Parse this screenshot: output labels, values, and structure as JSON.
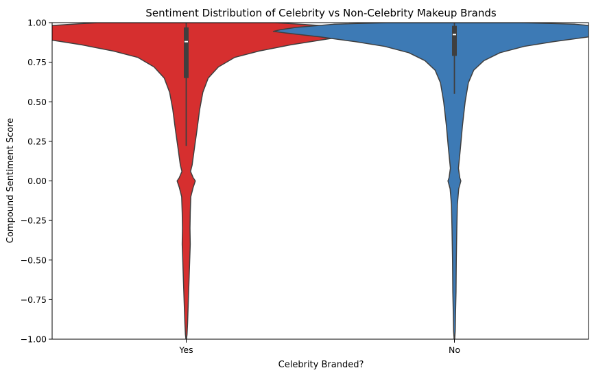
{
  "chart_data": {
    "type": "violin",
    "title": "Sentiment Distribution of Celebrity vs Non-Celebrity Makeup Brands",
    "xlabel": "Celebrity Branded?",
    "ylabel": "Compound Sentiment Score",
    "categories": [
      "Yes",
      "No"
    ],
    "ylim": [
      -1.0,
      1.0
    ],
    "yticks": [
      -1.0,
      -0.75,
      -0.5,
      -0.25,
      0.0,
      0.25,
      0.5,
      0.75,
      1.0
    ],
    "ytick_labels": [
      "−1.00",
      "−0.75",
      "−0.50",
      "−0.25",
      "0.00",
      "0.25",
      "0.50",
      "0.75",
      "1.00"
    ],
    "grid": false,
    "legend": false,
    "series": [
      {
        "category": "Yes",
        "color": "#d62f2f",
        "box": {
          "q1": 0.65,
          "median": 0.88,
          "q3": 0.97,
          "whisker_low": 0.22,
          "whisker_high": 1.0
        },
        "density_profile": [
          {
            "y": 1.0,
            "half_width": 0.33
          },
          {
            "y": 0.98,
            "half_width": 0.52
          },
          {
            "y": 0.96,
            "half_width": 0.59
          },
          {
            "y": 0.945,
            "half_width": 0.635
          },
          {
            "y": 0.93,
            "half_width": 0.64
          },
          {
            "y": 0.9,
            "half_width": 0.54
          },
          {
            "y": 0.86,
            "half_width": 0.39
          },
          {
            "y": 0.82,
            "half_width": 0.27
          },
          {
            "y": 0.78,
            "half_width": 0.18
          },
          {
            "y": 0.72,
            "half_width": 0.12
          },
          {
            "y": 0.65,
            "half_width": 0.082
          },
          {
            "y": 0.56,
            "half_width": 0.062
          },
          {
            "y": 0.45,
            "half_width": 0.05
          },
          {
            "y": 0.32,
            "half_width": 0.04
          },
          {
            "y": 0.2,
            "half_width": 0.03
          },
          {
            "y": 0.1,
            "half_width": 0.022
          },
          {
            "y": 0.06,
            "half_width": 0.016
          },
          {
            "y": 0.02,
            "half_width": 0.026
          },
          {
            "y": 0.0,
            "half_width": 0.034
          },
          {
            "y": -0.04,
            "half_width": 0.026
          },
          {
            "y": -0.1,
            "half_width": 0.017
          },
          {
            "y": -0.2,
            "half_width": 0.015
          },
          {
            "y": -0.3,
            "half_width": 0.014
          },
          {
            "y": -0.4,
            "half_width": 0.015
          },
          {
            "y": -0.5,
            "half_width": 0.013
          },
          {
            "y": -0.6,
            "half_width": 0.011
          },
          {
            "y": -0.7,
            "half_width": 0.009
          },
          {
            "y": -0.8,
            "half_width": 0.007
          },
          {
            "y": -0.9,
            "half_width": 0.005
          },
          {
            "y": -0.97,
            "half_width": 0.003
          },
          {
            "y": -1.0,
            "half_width": 0.001
          }
        ]
      },
      {
        "category": "No",
        "color": "#3d7ab5",
        "box": {
          "q1": 0.79,
          "median": 0.925,
          "q3": 0.98,
          "whisker_low": 0.55,
          "whisker_high": 1.0
        },
        "density_profile": [
          {
            "y": 1.0,
            "half_width": 0.25
          },
          {
            "y": 0.99,
            "half_width": 0.45
          },
          {
            "y": 0.97,
            "half_width": 0.59
          },
          {
            "y": 0.955,
            "half_width": 0.65
          },
          {
            "y": 0.945,
            "half_width": 0.675
          },
          {
            "y": 0.935,
            "half_width": 0.63
          },
          {
            "y": 0.91,
            "half_width": 0.5
          },
          {
            "y": 0.88,
            "half_width": 0.37
          },
          {
            "y": 0.85,
            "half_width": 0.26
          },
          {
            "y": 0.81,
            "half_width": 0.17
          },
          {
            "y": 0.76,
            "half_width": 0.11
          },
          {
            "y": 0.7,
            "half_width": 0.072
          },
          {
            "y": 0.62,
            "half_width": 0.052
          },
          {
            "y": 0.5,
            "half_width": 0.04
          },
          {
            "y": 0.35,
            "half_width": 0.03
          },
          {
            "y": 0.2,
            "half_width": 0.022
          },
          {
            "y": 0.08,
            "half_width": 0.015
          },
          {
            "y": 0.02,
            "half_width": 0.02
          },
          {
            "y": 0.0,
            "half_width": 0.024
          },
          {
            "y": -0.05,
            "half_width": 0.016
          },
          {
            "y": -0.15,
            "half_width": 0.011
          },
          {
            "y": -0.3,
            "half_width": 0.009
          },
          {
            "y": -0.5,
            "half_width": 0.007
          },
          {
            "y": -0.7,
            "half_width": 0.006
          },
          {
            "y": -0.85,
            "half_width": 0.004
          },
          {
            "y": -0.95,
            "half_width": 0.003
          },
          {
            "y": -1.0,
            "half_width": 0.001
          }
        ]
      }
    ]
  }
}
